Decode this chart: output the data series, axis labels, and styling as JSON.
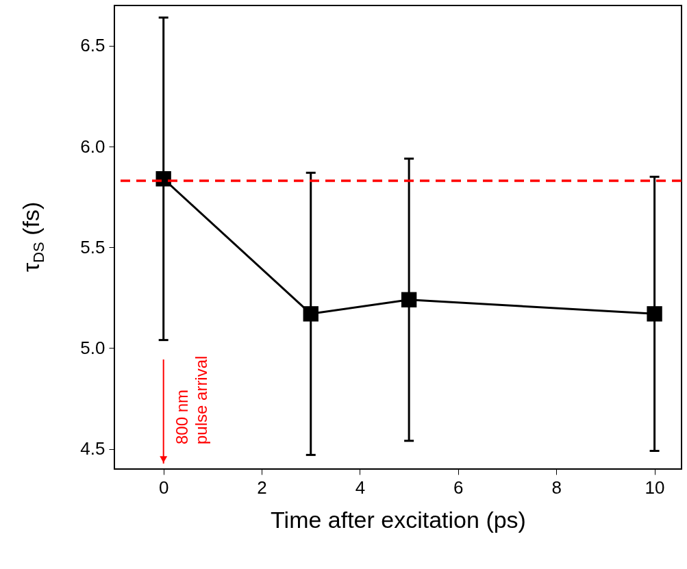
{
  "chart_data": {
    "type": "line",
    "xlabel": "Time after excitation (ps)",
    "ylabel": "τ$_{DS}$ (fs)",
    "x": [
      0,
      3,
      5,
      10
    ],
    "series": [
      {
        "color": "#000000",
        "values": [
          5.84,
          5.17,
          5.24,
          5.17
        ],
        "errors": [
          0.8,
          0.7,
          0.7,
          0.68
        ]
      }
    ],
    "marker": "square",
    "line_style": "solid",
    "grid": false,
    "xlim": [
      -1,
      10.55
    ],
    "xticks": [
      0,
      2,
      4,
      6,
      8,
      10
    ],
    "ylim": [
      4.4,
      6.7
    ],
    "yticks": [
      4.5,
      {
        "value": 5,
        "label": "5.0"
      },
      5.5,
      {
        "value": 6,
        "label": "6.0"
      },
      6.5
    ],
    "ref_lines": [
      {
        "axis": "y",
        "value": 5.83,
        "color": "#ff0000",
        "line_style": "dashed"
      }
    ],
    "annotations": [
      "800 nm\npulse arrival"
    ]
  }
}
